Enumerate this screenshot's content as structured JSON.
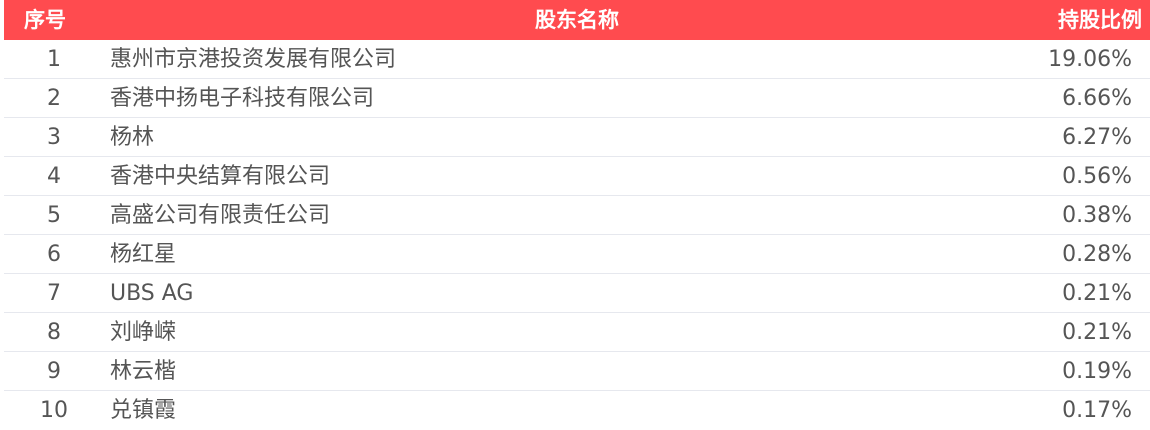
{
  "colors": {
    "header_bg": "#ff4b4f",
    "text": "#555555"
  },
  "header": {
    "index": "序号",
    "name": "股东名称",
    "ratio": "持股比例"
  },
  "rows": [
    {
      "index": "1",
      "name": "惠州市京港投资发展有限公司",
      "ratio": "19.06%"
    },
    {
      "index": "2",
      "name": "香港中扬电子科技有限公司",
      "ratio": "6.66%"
    },
    {
      "index": "3",
      "name": "杨林",
      "ratio": "6.27%"
    },
    {
      "index": "4",
      "name": "香港中央结算有限公司",
      "ratio": "0.56%"
    },
    {
      "index": "5",
      "name": "高盛公司有限责任公司",
      "ratio": "0.38%"
    },
    {
      "index": "6",
      "name": "杨红星",
      "ratio": "0.28%"
    },
    {
      "index": "7",
      "name": "UBS AG",
      "ratio": "0.21%"
    },
    {
      "index": "8",
      "name": "刘峥嵘",
      "ratio": "0.21%"
    },
    {
      "index": "9",
      "name": "林云楷",
      "ratio": "0.19%"
    },
    {
      "index": "10",
      "name": "兑镇霞",
      "ratio": "0.17%"
    }
  ]
}
